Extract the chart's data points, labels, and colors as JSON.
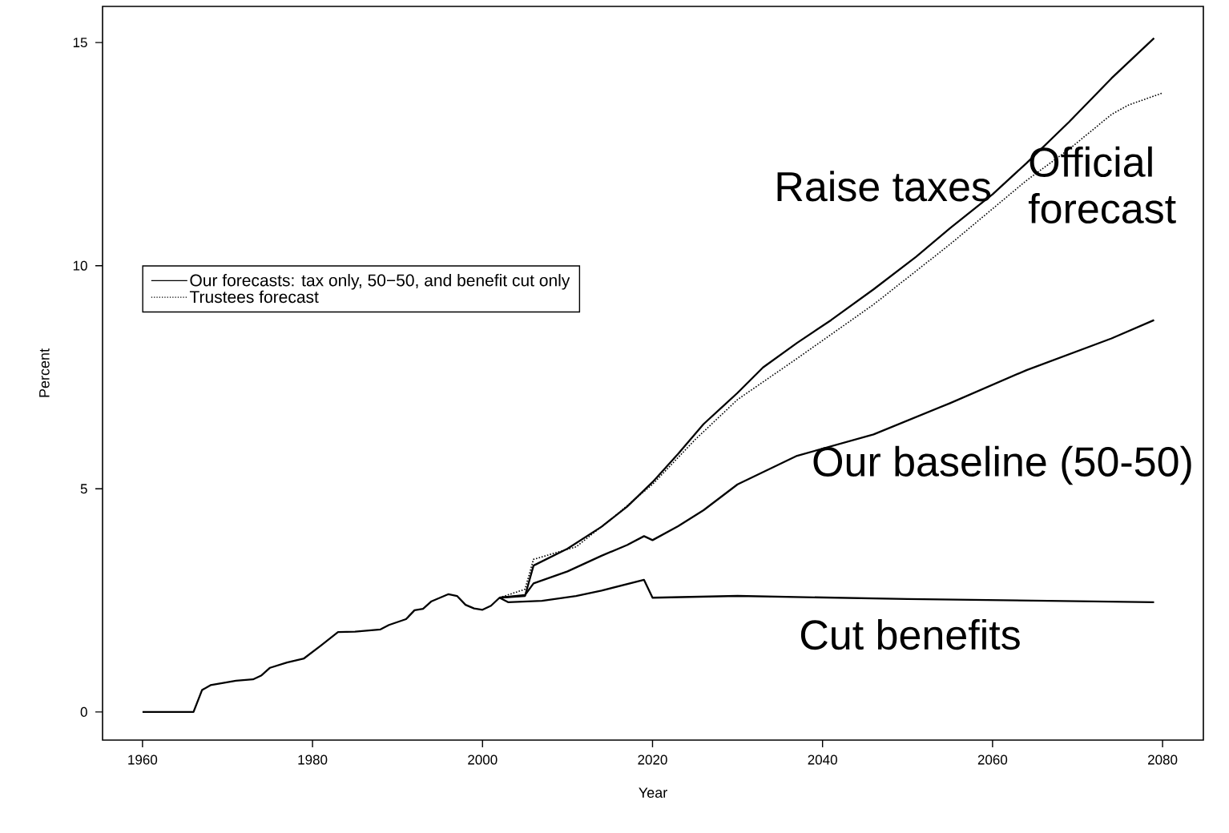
{
  "chart_data": {
    "type": "line",
    "xlabel": "Year",
    "ylabel": "Percent",
    "xlim": [
      1955.3,
      2084.8
    ],
    "ylim": [
      -0.63,
      15.81
    ],
    "xticks": [
      1960,
      1980,
      2000,
      2020,
      2040,
      2060,
      2080
    ],
    "yticks": [
      0,
      5,
      10,
      15
    ],
    "legend": "left",
    "grid": false,
    "series": [
      {
        "name": "Our forecasts: tax only, 50−50, and benefit cut only",
        "color": "#000000",
        "line_style": "solid",
        "x": [
          1960,
          1966,
          1967,
          1968,
          1971,
          1973,
          1974,
          1975,
          1977,
          1979,
          1981,
          1983,
          1985,
          1988,
          1989,
          1991,
          1992,
          1993,
          1994,
          1996,
          1997,
          1998,
          1999,
          2000,
          2001,
          2002,
          2005,
          2006,
          2010,
          2014,
          2017,
          2020,
          2023,
          2026,
          2030,
          2033,
          2037,
          2041,
          2046,
          2051,
          2055,
          2060,
          2064,
          2069,
          2074,
          2079
        ],
        "values": [
          0,
          0,
          0.49,
          0.6,
          0.7,
          0.73,
          0.82,
          0.99,
          1.11,
          1.2,
          1.49,
          1.79,
          1.8,
          1.85,
          1.95,
          2.08,
          2.28,
          2.31,
          2.48,
          2.64,
          2.6,
          2.4,
          2.32,
          2.29,
          2.38,
          2.56,
          2.6,
          3.28,
          3.66,
          4.15,
          4.6,
          5.15,
          5.78,
          6.45,
          7.15,
          7.72,
          8.27,
          8.78,
          9.47,
          10.2,
          10.84,
          11.6,
          12.3,
          13.22,
          14.2,
          15.1
        ]
      },
      {
        "color": "#000000",
        "line_style": "solid",
        "x": [
          2002,
          2005,
          2006,
          2010,
          2014,
          2017,
          2019,
          2020,
          2023,
          2026,
          2030,
          2037,
          2046,
          2055,
          2064,
          2074,
          2079
        ],
        "values": [
          2.56,
          2.62,
          2.88,
          3.15,
          3.5,
          3.74,
          3.94,
          3.85,
          4.16,
          4.52,
          5.1,
          5.74,
          6.22,
          6.92,
          7.66,
          8.37,
          8.78
        ]
      },
      {
        "color": "#000000",
        "line_style": "solid",
        "x": [
          2002,
          2003,
          2007,
          2011,
          2014,
          2019,
          2020,
          2030,
          2050,
          2079
        ],
        "values": [
          2.56,
          2.46,
          2.49,
          2.6,
          2.72,
          2.96,
          2.56,
          2.6,
          2.53,
          2.46
        ]
      },
      {
        "name": "Trustees forecast",
        "color": "#000000",
        "line_style": "dotted",
        "x": [
          2002,
          2005,
          2006,
          2011,
          2015,
          2020,
          2025,
          2030,
          2037,
          2046,
          2055,
          2064,
          2069,
          2074,
          2076,
          2080
        ],
        "values": [
          2.56,
          2.75,
          3.42,
          3.7,
          4.3,
          5.1,
          6.1,
          7.0,
          7.92,
          9.13,
          10.48,
          11.91,
          12.61,
          13.39,
          13.6,
          13.87
        ]
      }
    ],
    "annotations": [
      "Raise taxes",
      "Official forecast",
      "Our baseline (50-50)",
      "Cut benefits"
    ]
  }
}
